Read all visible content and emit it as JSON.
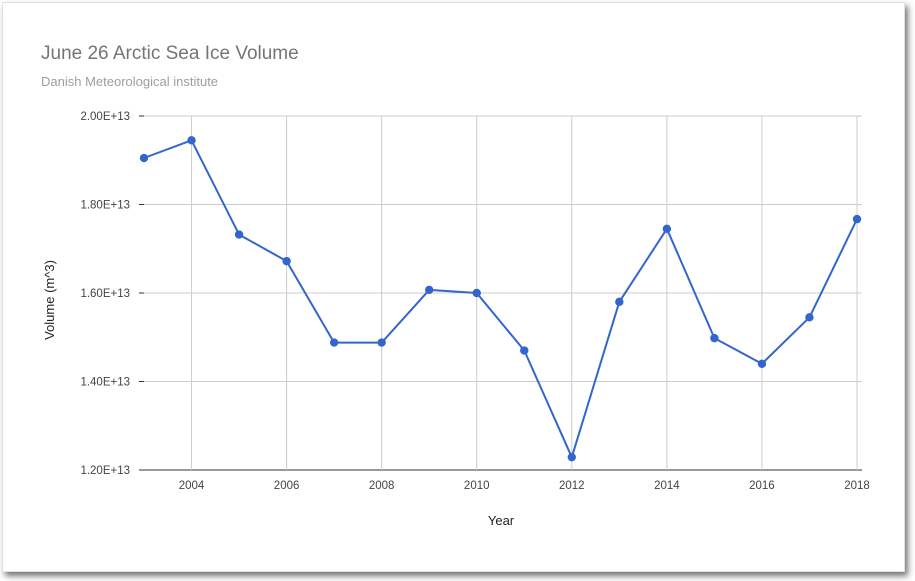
{
  "chart_data": {
    "type": "line",
    "title": "June 26 Arctic Sea Ice Volume",
    "subtitle": "Danish Meteorological institute",
    "xlabel": "Year",
    "ylabel": "Volume (m^3)",
    "x": [
      2003,
      2004,
      2005,
      2006,
      2007,
      2008,
      2009,
      2010,
      2011,
      2012,
      2013,
      2014,
      2015,
      2016,
      2017,
      2018
    ],
    "series": [
      {
        "values": [
          19050000000000.0,
          19450000000000.0,
          17320000000000.0,
          16720000000000.0,
          14880000000000.0,
          14880000000000.0,
          16070000000000.0,
          16000000000000.0,
          14700000000000.0,
          12290000000000.0,
          15800000000000.0,
          17450000000000.0,
          14980000000000.0,
          14400000000000.0,
          15450000000000.0,
          17670000000000.0
        ],
        "color": "#3366cc"
      }
    ],
    "xlim": [
      2003,
      2018
    ],
    "ylim": [
      12000000000000.0,
      20000000000000.0
    ],
    "x_ticks": [
      2004,
      2006,
      2008,
      2010,
      2012,
      2014,
      2016,
      2018
    ],
    "x_tick_labels": [
      "2004",
      "2006",
      "2008",
      "2010",
      "2012",
      "2014",
      "2016",
      "2018"
    ],
    "y_ticks": [
      12000000000000.0,
      14000000000000.0,
      16000000000000.0,
      18000000000000.0,
      20000000000000.0
    ],
    "y_tick_labels": [
      "1.20E+13",
      "1.40E+13",
      "1.60E+13",
      "1.80E+13",
      "2.00E+13"
    ],
    "grid": true,
    "legend": "none"
  }
}
